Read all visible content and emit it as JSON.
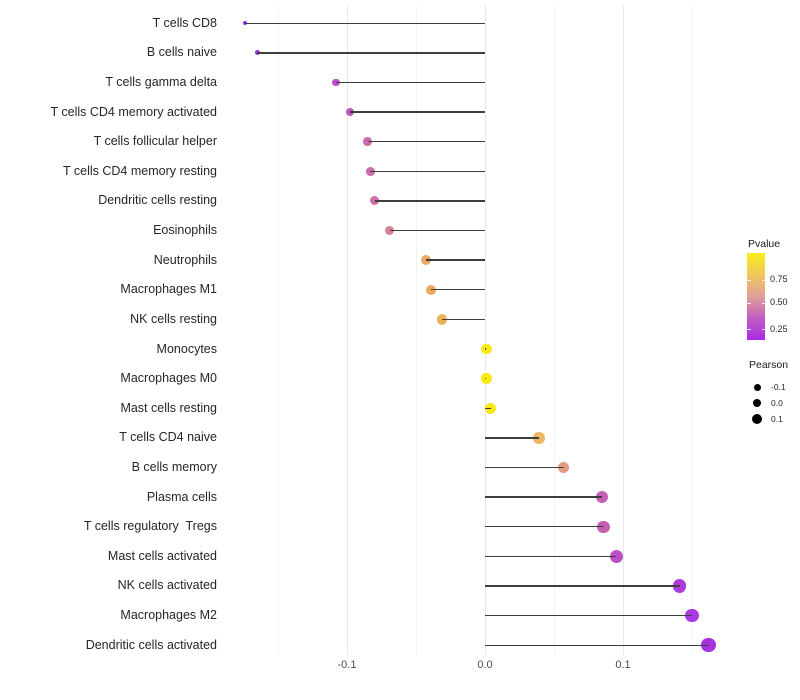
{
  "chart_data": {
    "type": "scatter",
    "style": "lollipop",
    "title": "",
    "xlabel": "",
    "ylabel": "",
    "xlim": [
      -0.19,
      0.17
    ],
    "grid": "vertical gridlines every 0.05, minimal theme, no axis lines",
    "legend_position": "right",
    "x_ticks": [
      {
        "value": -0.1,
        "label": "-0.1"
      },
      {
        "value": 0.0,
        "label": "0.0"
      },
      {
        "value": 0.1,
        "label": "0.1"
      }
    ],
    "points": [
      {
        "label": "T cells CD8",
        "pearson": -0.174,
        "color": "#9B2DE6",
        "diameter": 3.8
      },
      {
        "label": "B cells naive",
        "pearson": -0.165,
        "color": "#A02BE4",
        "diameter": 5.2
      },
      {
        "label": "T cells gamma delta",
        "pearson": -0.108,
        "color": "#BB4FC8",
        "diameter": 7.6
      },
      {
        "label": "T cells CD4 memory activated",
        "pearson": -0.098,
        "color": "#C156BE",
        "diameter": 8.0
      },
      {
        "label": "T cells follicular helper",
        "pearson": -0.085,
        "color": "#CB6BB0",
        "diameter": 8.6
      },
      {
        "label": "T cells CD4 memory resting",
        "pearson": -0.083,
        "color": "#CC6DAE",
        "diameter": 8.6
      },
      {
        "label": "Dendritic cells resting",
        "pearson": -0.08,
        "color": "#CE70A9",
        "diameter": 9.0
      },
      {
        "label": "Eosinophils",
        "pearson": -0.069,
        "color": "#D87F93",
        "diameter": 9.4
      },
      {
        "label": "Neutrophils",
        "pearson": -0.043,
        "color": "#E9A964",
        "diameter": 10.0
      },
      {
        "label": "Macrophages M1",
        "pearson": -0.039,
        "color": "#EAAB60",
        "diameter": 10.0
      },
      {
        "label": "NK cells resting",
        "pearson": -0.031,
        "color": "#ECB25B",
        "diameter": 10.4
      },
      {
        "label": "Monocytes",
        "pearson": 0.001,
        "color": "#F7EB0E",
        "diameter": 10.6
      },
      {
        "label": "Macrophages M0",
        "pearson": 0.001,
        "color": "#F7EB0E",
        "diameter": 10.6
      },
      {
        "label": "Mast cells resting",
        "pearson": 0.004,
        "color": "#F6E914",
        "diameter": 11.0
      },
      {
        "label": "T cells CD4 naive",
        "pearson": 0.039,
        "color": "#EDB763",
        "diameter": 11.4
      },
      {
        "label": "B cells memory",
        "pearson": 0.057,
        "color": "#E39A80",
        "diameter": 11.6
      },
      {
        "label": "Plasma cells",
        "pearson": 0.085,
        "color": "#C560B4",
        "diameter": 12.4
      },
      {
        "label": "T cells regulatory  Tregs",
        "pearson": 0.086,
        "color": "#C55FB2",
        "diameter": 12.4
      },
      {
        "label": "Mast cells activated",
        "pearson": 0.095,
        "color": "#BD50C6",
        "diameter": 13.0
      },
      {
        "label": "NK cells activated",
        "pearson": 0.141,
        "color": "#AD3ADC",
        "diameter": 13.4
      },
      {
        "label": "Macrophages M2",
        "pearson": 0.15,
        "color": "#AB38DE",
        "diameter": 13.6
      },
      {
        "label": "Dendritic cells activated",
        "pearson": 0.162,
        "color": "#A832E2",
        "diameter": 14.2
      }
    ],
    "legend": {
      "pvalue": {
        "title": "Pvalue",
        "ticks": [
          "0.75",
          "0.50",
          "0.25"
        ],
        "gradient_top_to_bottom": [
          "#F8EE19",
          "#EFC75D",
          "#E0A098",
          "#C25CC0",
          "#A82BE8"
        ]
      },
      "pearson": {
        "title": "Pearson",
        "items": [
          {
            "label": "-0.1",
            "diameter": 7.0
          },
          {
            "label": "0.0",
            "diameter": 8.8
          },
          {
            "label": "0.1",
            "diameter": 10.2
          }
        ]
      }
    },
    "colors": {
      "stem": "#3E3E3E",
      "grid_major": "#E8E8E8",
      "grid_minor": "#F3F3F3",
      "axis_text": "#4D4D4D",
      "label_text": "#262626",
      "legend_dot": "#000000",
      "background": "#FFFFFF"
    }
  }
}
